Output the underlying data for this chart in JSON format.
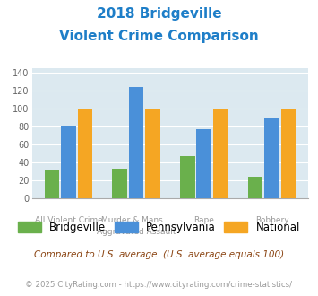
{
  "title_line1": "2018 Bridgeville",
  "title_line2": "Violent Crime Comparison",
  "title_color": "#1e7ec8",
  "top_labels": [
    "",
    "Murder & Mans...",
    "",
    ""
  ],
  "bottom_labels": [
    "All Violent Crime",
    "Aggravated Assault",
    "Rape",
    "Robbery"
  ],
  "bridgeville": [
    32,
    33,
    47,
    24
  ],
  "pennsylvania": [
    80,
    124,
    77,
    89
  ],
  "national": [
    100,
    100,
    100,
    100
  ],
  "colors": {
    "bridgeville": "#6ab04c",
    "pennsylvania": "#4a90d9",
    "national": "#f5a623"
  },
  "ylim": [
    0,
    145
  ],
  "yticks": [
    0,
    20,
    40,
    60,
    80,
    100,
    120,
    140
  ],
  "bg_color": "#dce9f0",
  "legend_labels": [
    "Bridgeville",
    "Pennsylvania",
    "National"
  ],
  "footnote1": "Compared to U.S. average. (U.S. average equals 100)",
  "footnote2": "© 2025 CityRating.com - https://www.cityrating.com/crime-statistics/",
  "footnote1_color": "#8b4513",
  "footnote2_color": "#999999",
  "footnote2_link_color": "#4a90d9"
}
